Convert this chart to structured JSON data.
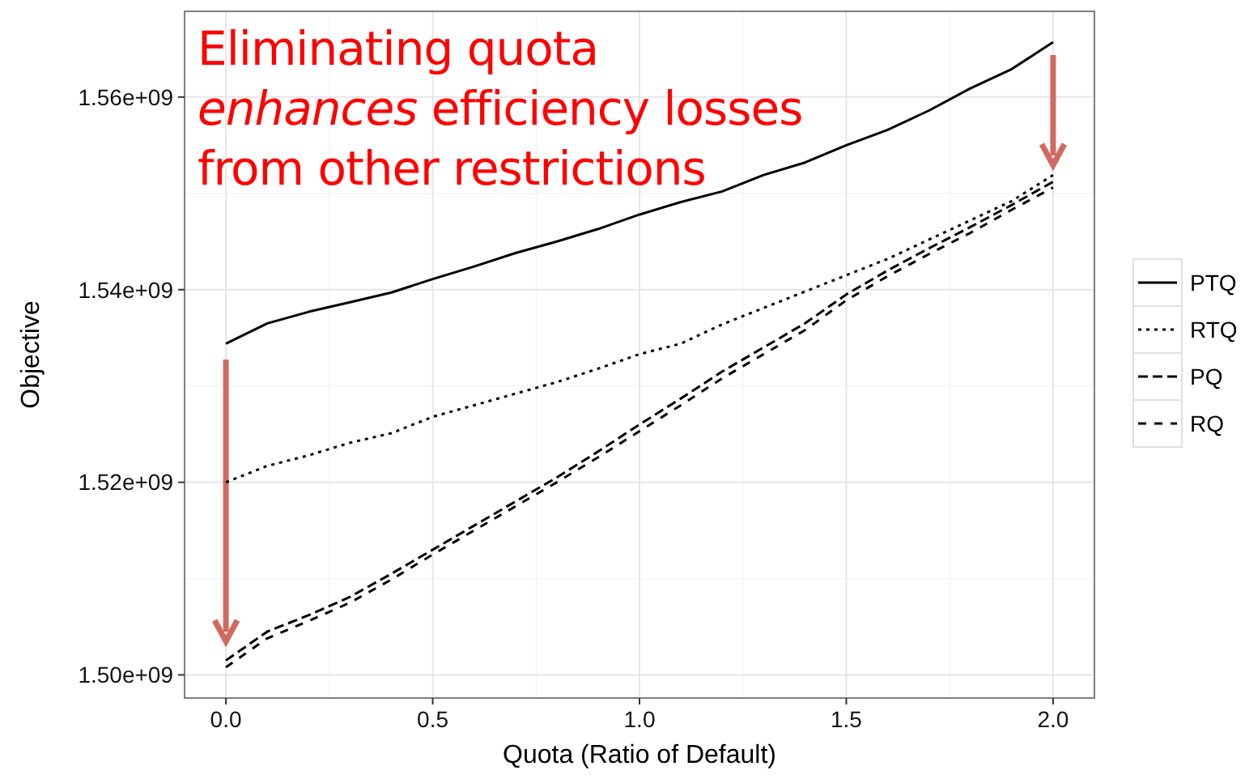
{
  "chart_data": {
    "type": "line",
    "xlabel": "Quota (Ratio of Default)",
    "ylabel": "Objective",
    "x": [
      0,
      0.1,
      0.2,
      0.3,
      0.4,
      0.5,
      0.6,
      0.7,
      0.8,
      0.9,
      1.0,
      1.1,
      1.2,
      1.3,
      1.4,
      1.5,
      1.6,
      1.7,
      1.8,
      1.9,
      2.0
    ],
    "xlim": [
      -0.1,
      2.1
    ],
    "xticks": [
      {
        "value": 0,
        "label": "0.0"
      },
      0.5,
      {
        "value": 1,
        "label": "1.0"
      },
      1.5,
      {
        "value": 2,
        "label": "2.0"
      }
    ],
    "ylim": [
      1497600000,
      1568900000
    ],
    "yticks": [
      {
        "value": 1500000000,
        "label": "1.50e+09"
      },
      {
        "value": 1520000000,
        "label": "1.52e+09"
      },
      {
        "value": 1540000000,
        "label": "1.54e+09"
      },
      {
        "value": 1560000000,
        "label": "1.56e+09"
      }
    ],
    "grid": true,
    "legend": "right",
    "marker": "none",
    "series": [
      {
        "name": "PTQ",
        "color": "#000000",
        "line_style": "solid",
        "values": [
          1534400000,
          1536500000,
          1537700000,
          1538700000,
          1539700000,
          1541100000,
          1542400000,
          1543800000,
          1545000000,
          1546300000,
          1547800000,
          1549100000,
          1550200000,
          1551900000,
          1553200000,
          1555000000,
          1556600000,
          1558600000,
          1560900000,
          1562900000,
          1565700000
        ]
      },
      {
        "name": "RTQ",
        "color": "#000000",
        "line_style": "dotted",
        "values": [
          1520000000,
          1521700000,
          1522800000,
          1524100000,
          1525100000,
          1526800000,
          1528000000,
          1529200000,
          1530400000,
          1531800000,
          1533300000,
          1534400000,
          1536400000,
          1538100000,
          1539800000,
          1541500000,
          1543200000,
          1545200000,
          1547200000,
          1549200000,
          1551900000
        ]
      },
      {
        "name": "PQ",
        "color": "#000000",
        "line_style": "dashed",
        "values": [
          1501500000,
          1504500000,
          1506200000,
          1508100000,
          1510500000,
          1513000000,
          1515500000,
          1518000000,
          1520500000,
          1523200000,
          1526000000,
          1528700000,
          1531500000,
          1534000000,
          1536500000,
          1539500000,
          1542000000,
          1544300000,
          1546500000,
          1548800000,
          1551200000
        ]
      },
      {
        "name": "RQ",
        "color": "#000000",
        "line_style": "dashed",
        "values": [
          1500800000,
          1503800000,
          1505600000,
          1507500000,
          1509900000,
          1512500000,
          1515000000,
          1517500000,
          1520000000,
          1522600000,
          1525300000,
          1528000000,
          1530800000,
          1533300000,
          1535800000,
          1538900000,
          1541400000,
          1543700000,
          1545900000,
          1548300000,
          1550600000
        ]
      }
    ],
    "annotations": [
      "Eliminating quota\nenhances efficiency losses\nfrom other restrictions"
    ]
  }
}
